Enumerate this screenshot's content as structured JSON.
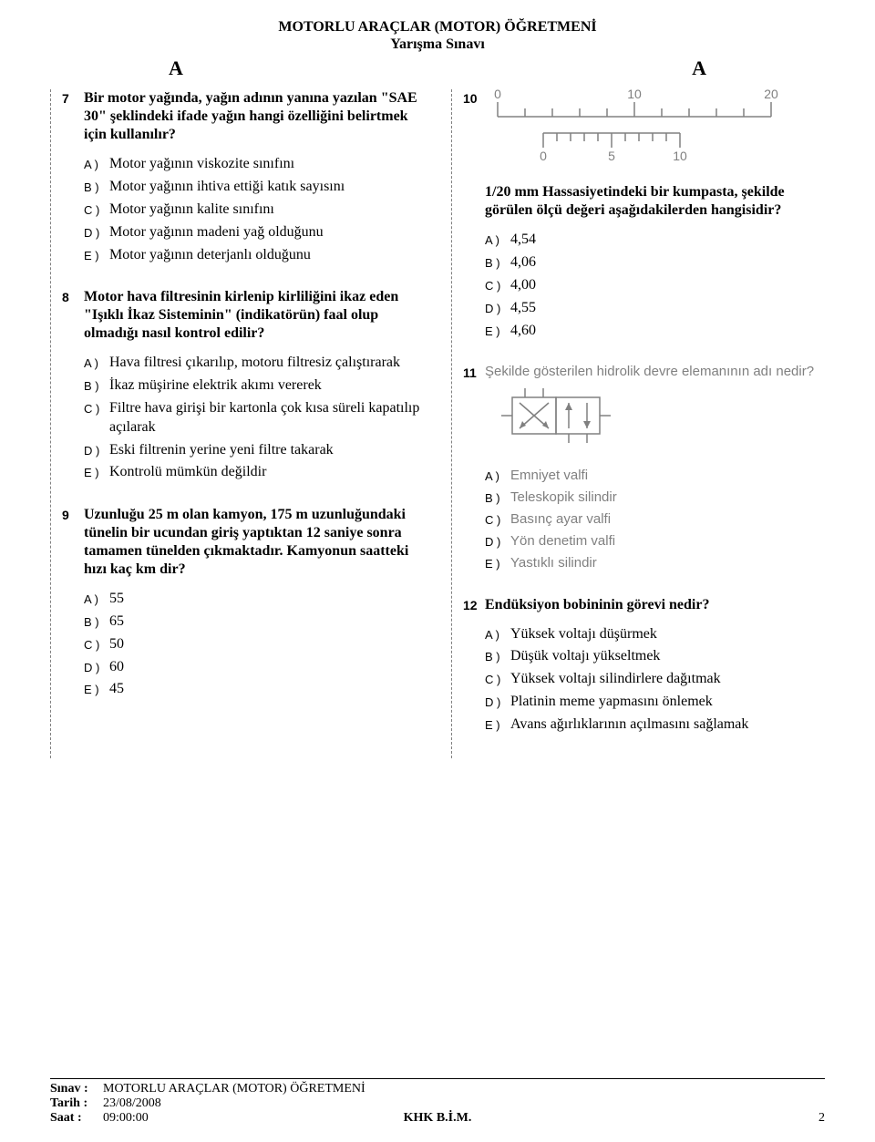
{
  "header": {
    "title_line1": "MOTORLU ARAÇLAR (MOTOR) ÖĞRETMENİ",
    "title_line2": "Yarışma Sınavı",
    "section_left": "A",
    "section_right": "A"
  },
  "questions": {
    "q7": {
      "num": "7",
      "text": "Bir motor yağında, yağın adının yanına yazılan \"SAE 30\" şeklindeki ifade yağın hangi özelliğini belirtmek için kullanılır?",
      "options": {
        "A": "Motor yağının viskozite sınıfını",
        "B": "Motor yağının ihtiva ettiği katık sayısını",
        "C": "Motor yağının kalite sınıfını",
        "D": "Motor yağının madeni yağ olduğunu",
        "E": "Motor yağının deterjanlı olduğunu"
      }
    },
    "q8": {
      "num": "8",
      "text": "Motor hava filtresinin kirlenip kirliliğini ikaz eden \"Işıklı İkaz Sisteminin\" (indikatörün) faal olup olmadığı nasıl kontrol edilir?",
      "options": {
        "A": "Hava filtresi çıkarılıp, motoru filtresiz çalıştırarak",
        "B": "İkaz müşirine elektrik akımı vererek",
        "C": "Filtre hava girişi bir kartonla çok kısa süreli kapatılıp açılarak",
        "D": "Eski filtrenin yerine yeni filtre takarak",
        "E": "Kontrolü mümkün değildir"
      }
    },
    "q9": {
      "num": "9",
      "text": "Uzunluğu 25 m olan kamyon, 175 m uzunluğundaki tünelin bir ucundan giriş yaptıktan 12 saniye sonra tamamen tünelden çıkmaktadır. Kamyonun saatteki hızı kaç km dir?",
      "options": {
        "A": "55",
        "B": "65",
        "C": "50",
        "D": "60",
        "E": "45"
      }
    },
    "q10": {
      "num": "10",
      "text": "1/20 mm Hassasiyetindeki bir kumpasta, şekilde görülen ölçü değeri aşağıdakilerden hangisidir?",
      "options": {
        "A": "4,54",
        "B": "4,06",
        "C": "4,00",
        "D": "4,55",
        "E": "4,60"
      },
      "figure": {
        "top_scale": {
          "labels": [
            "0",
            "10",
            "20"
          ],
          "positions": [
            0,
            150,
            300
          ],
          "ticks_major": [
            0,
            30,
            60,
            90,
            120,
            150,
            180,
            210,
            240,
            270,
            300
          ]
        },
        "bottom_scale": {
          "labels": [
            "0",
            "5",
            "10"
          ],
          "positions": [
            50,
            125,
            200
          ],
          "ticks": [
            50,
            65,
            80,
            95,
            110,
            125,
            140,
            155,
            170,
            185,
            200
          ]
        },
        "stroke": "#808080",
        "label_color": "#808080"
      }
    },
    "q11": {
      "num": "11",
      "text": "Şekilde gösterilen hidrolik devre elemanının adı nedir?",
      "options": {
        "A": "Emniyet valfi",
        "B": "Teleskopik silindir",
        "C": "Basınç ayar valfi",
        "D": "Yön denetim valfi",
        "E": "Yastıklı silindir"
      },
      "figure": {
        "stroke": "#808080"
      }
    },
    "q12": {
      "num": "12",
      "text": "Endüksiyon bobininin görevi nedir?",
      "options": {
        "A": "Yüksek voltajı düşürmek",
        "B": "Düşük voltajı yükseltmek",
        "C": "Yüksek voltajı silindirlere dağıtmak",
        "D": "Platinin meme yapmasını önlemek",
        "E": "Avans ağırlıklarının açılmasını sağlamak"
      }
    }
  },
  "footer": {
    "exam_label": "Sınav :",
    "exam_value": "MOTORLU ARAÇLAR (MOTOR) ÖĞRETMENİ",
    "date_label": "Tarih :",
    "date_value": "23/08/2008",
    "time_label": "Saat  :",
    "time_value": "09:00:00",
    "center": "KHK B.İ.M.",
    "page_num": "2"
  }
}
